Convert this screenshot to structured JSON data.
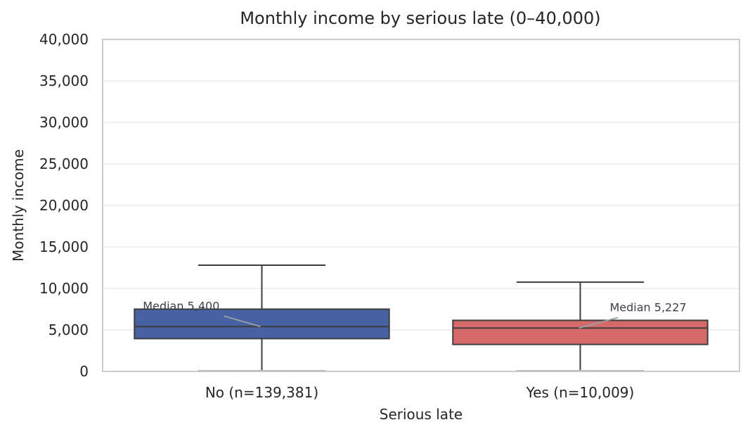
{
  "chart_data": {
    "type": "box",
    "title": "Monthly income by serious late (0–40,000)",
    "xlabel": "Serious late",
    "ylabel": "Monthly income",
    "ylim": [
      0,
      40000
    ],
    "yticks": [
      0,
      5000,
      10000,
      15000,
      20000,
      25000,
      30000,
      35000,
      40000
    ],
    "ytick_labels": [
      "0",
      "5,000",
      "10,000",
      "15,000",
      "20,000",
      "25,000",
      "30,000",
      "35,000",
      "40,000"
    ],
    "grid": true,
    "categories": [
      "No (n=139,381)",
      "Yes (n=10,009)"
    ],
    "boxes": [
      {
        "category": "No (n=139,381)",
        "whisker_low": 0,
        "q1": 3950,
        "median": 5400,
        "q3": 7500,
        "whisker_high": 12800,
        "color": "#4761a2",
        "annotation": "Median 5,400"
      },
      {
        "category": "Yes (n=10,009)",
        "whisker_low": 0,
        "q1": 3250,
        "median": 5227,
        "q3": 6150,
        "whisker_high": 10750,
        "color": "#d66a6a",
        "annotation": "Median 5,227"
      }
    ]
  },
  "colors": {
    "axis_frame": "#cccccc",
    "grid": "#ebebeb",
    "line": "#3d3d3d",
    "text": "#262626"
  }
}
